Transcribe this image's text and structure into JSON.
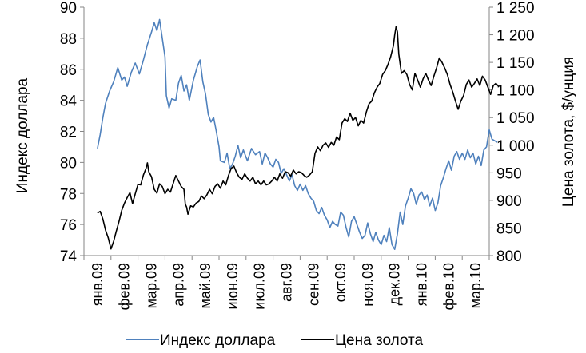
{
  "chart_data": {
    "type": "line",
    "y_left": {
      "label": "Индекс доллара",
      "ylim": [
        74,
        90
      ],
      "ticks": [
        74,
        76,
        78,
        80,
        82,
        84,
        86,
        88,
        90
      ]
    },
    "y_right": {
      "label": "Цена золота, $/унция",
      "ylim": [
        800,
        1250
      ],
      "ticks": [
        800,
        850,
        900,
        950,
        1000,
        1050,
        1100,
        1150,
        1200,
        1250
      ],
      "tick_labels": [
        "800",
        "850",
        "900",
        "950",
        "1 000",
        "1 050",
        "1 100",
        "1 150",
        "1 200",
        "1 250"
      ]
    },
    "x_axis": {
      "categories": [
        "янв.09",
        "фев.09",
        "мар.09",
        "апр.09",
        "май.09",
        "июн.09",
        "июл.09",
        "авг.09",
        "сен.09",
        "окт.09",
        "ноя.09",
        "дек.09",
        "янв.10",
        "фев.10",
        "мар.10"
      ]
    },
    "legend_position": "bottom",
    "grid": false,
    "series": [
      {
        "name": "Индекс доллара",
        "axis": "left",
        "color": "#4f81bd",
        "points": [
          [
            0.0,
            80.9
          ],
          [
            0.1,
            81.8
          ],
          [
            0.2,
            82.9
          ],
          [
            0.3,
            83.8
          ],
          [
            0.45,
            84.6
          ],
          [
            0.6,
            85.2
          ],
          [
            0.75,
            86.1
          ],
          [
            0.9,
            85.3
          ],
          [
            1.0,
            85.5
          ],
          [
            1.1,
            84.9
          ],
          [
            1.25,
            85.8
          ],
          [
            1.4,
            86.4
          ],
          [
            1.55,
            85.7
          ],
          [
            1.7,
            86.6
          ],
          [
            1.85,
            87.6
          ],
          [
            2.0,
            88.4
          ],
          [
            2.1,
            89.0
          ],
          [
            2.2,
            88.5
          ],
          [
            2.3,
            89.2
          ],
          [
            2.4,
            88.0
          ],
          [
            2.5,
            86.8
          ],
          [
            2.55,
            84.3
          ],
          [
            2.65,
            83.5
          ],
          [
            2.75,
            84.1
          ],
          [
            2.9,
            84.0
          ],
          [
            3.0,
            85.1
          ],
          [
            3.1,
            85.6
          ],
          [
            3.2,
            84.6
          ],
          [
            3.3,
            85.0
          ],
          [
            3.4,
            84.0
          ],
          [
            3.55,
            85.3
          ],
          [
            3.7,
            86.2
          ],
          [
            3.8,
            86.6
          ],
          [
            3.9,
            85.2
          ],
          [
            4.0,
            84.4
          ],
          [
            4.1,
            83.1
          ],
          [
            4.2,
            82.6
          ],
          [
            4.3,
            82.9
          ],
          [
            4.4,
            82.0
          ],
          [
            4.5,
            81.0
          ],
          [
            4.55,
            80.1
          ],
          [
            4.7,
            80.0
          ],
          [
            4.8,
            80.6
          ],
          [
            4.9,
            79.6
          ],
          [
            5.0,
            79.9
          ],
          [
            5.1,
            80.4
          ],
          [
            5.2,
            81.1
          ],
          [
            5.3,
            80.3
          ],
          [
            5.4,
            80.8
          ],
          [
            5.55,
            80.1
          ],
          [
            5.7,
            80.9
          ],
          [
            5.85,
            80.5
          ],
          [
            6.0,
            80.7
          ],
          [
            6.1,
            79.9
          ],
          [
            6.2,
            80.6
          ],
          [
            6.3,
            80.3
          ],
          [
            6.4,
            79.9
          ],
          [
            6.5,
            79.7
          ],
          [
            6.6,
            80.2
          ],
          [
            6.7,
            80.0
          ],
          [
            6.8,
            79.3
          ],
          [
            6.9,
            79.6
          ],
          [
            7.0,
            79.2
          ],
          [
            7.1,
            78.8
          ],
          [
            7.2,
            79.2
          ],
          [
            7.3,
            78.5
          ],
          [
            7.4,
            78.2
          ],
          [
            7.5,
            78.6
          ],
          [
            7.6,
            78.2
          ],
          [
            7.7,
            78.5
          ],
          [
            7.8,
            78.0
          ],
          [
            7.9,
            77.7
          ],
          [
            8.0,
            77.5
          ],
          [
            8.1,
            76.9
          ],
          [
            8.2,
            76.7
          ],
          [
            8.3,
            77.1
          ],
          [
            8.4,
            76.6
          ],
          [
            8.5,
            76.3
          ],
          [
            8.6,
            75.8
          ],
          [
            8.7,
            76.2
          ],
          [
            8.8,
            76.0
          ],
          [
            8.9,
            75.9
          ],
          [
            9.0,
            76.8
          ],
          [
            9.1,
            76.6
          ],
          [
            9.2,
            75.8
          ],
          [
            9.3,
            75.2
          ],
          [
            9.4,
            76.2
          ],
          [
            9.5,
            76.5
          ],
          [
            9.6,
            76.0
          ],
          [
            9.7,
            75.5
          ],
          [
            9.8,
            75.1
          ],
          [
            9.9,
            75.3
          ],
          [
            10.0,
            76.1
          ],
          [
            10.1,
            75.4
          ],
          [
            10.2,
            74.9
          ],
          [
            10.3,
            75.5
          ],
          [
            10.4,
            75.0
          ],
          [
            10.5,
            74.7
          ],
          [
            10.6,
            75.3
          ],
          [
            10.7,
            74.9
          ],
          [
            10.8,
            75.8
          ],
          [
            10.9,
            74.7
          ],
          [
            11.0,
            74.4
          ],
          [
            11.1,
            75.4
          ],
          [
            11.2,
            76.8
          ],
          [
            11.3,
            76.0
          ],
          [
            11.4,
            77.2
          ],
          [
            11.5,
            77.7
          ],
          [
            11.6,
            78.3
          ],
          [
            11.7,
            78.0
          ],
          [
            11.8,
            77.3
          ],
          [
            11.9,
            77.9
          ],
          [
            12.0,
            78.1
          ],
          [
            12.1,
            77.6
          ],
          [
            12.2,
            77.9
          ],
          [
            12.3,
            77.2
          ],
          [
            12.4,
            77.7
          ],
          [
            12.5,
            76.9
          ],
          [
            12.6,
            77.4
          ],
          [
            12.7,
            78.5
          ],
          [
            12.8,
            79.0
          ],
          [
            12.9,
            79.6
          ],
          [
            13.0,
            80.1
          ],
          [
            13.1,
            79.5
          ],
          [
            13.2,
            80.4
          ],
          [
            13.3,
            80.7
          ],
          [
            13.4,
            80.2
          ],
          [
            13.5,
            80.6
          ],
          [
            13.6,
            80.2
          ],
          [
            13.7,
            80.8
          ],
          [
            13.8,
            80.3
          ],
          [
            13.9,
            80.6
          ],
          [
            14.0,
            79.9
          ],
          [
            14.1,
            80.4
          ],
          [
            14.2,
            79.8
          ],
          [
            14.3,
            80.8
          ],
          [
            14.4,
            81.0
          ],
          [
            14.5,
            82.1
          ],
          [
            14.6,
            81.5
          ],
          [
            14.7,
            81.4
          ],
          [
            14.8,
            81.3
          ]
        ]
      },
      {
        "name": "Цена золота",
        "axis": "right",
        "color": "#000000",
        "points": [
          [
            0.0,
            877
          ],
          [
            0.1,
            880
          ],
          [
            0.2,
            866
          ],
          [
            0.3,
            846
          ],
          [
            0.4,
            832
          ],
          [
            0.5,
            812
          ],
          [
            0.6,
            826
          ],
          [
            0.7,
            845
          ],
          [
            0.8,
            862
          ],
          [
            0.9,
            882
          ],
          [
            1.0,
            895
          ],
          [
            1.1,
            905
          ],
          [
            1.2,
            914
          ],
          [
            1.3,
            894
          ],
          [
            1.4,
            912
          ],
          [
            1.5,
            929
          ],
          [
            1.6,
            928
          ],
          [
            1.7,
            946
          ],
          [
            1.8,
            958
          ],
          [
            1.85,
            968
          ],
          [
            1.9,
            952
          ],
          [
            2.0,
            943
          ],
          [
            2.1,
            920
          ],
          [
            2.2,
            913
          ],
          [
            2.3,
            930
          ],
          [
            2.4,
            925
          ],
          [
            2.5,
            912
          ],
          [
            2.6,
            920
          ],
          [
            2.7,
            915
          ],
          [
            2.8,
            930
          ],
          [
            2.9,
            945
          ],
          [
            3.0,
            935
          ],
          [
            3.1,
            925
          ],
          [
            3.2,
            920
          ],
          [
            3.25,
            893
          ],
          [
            3.3,
            888
          ],
          [
            3.35,
            875
          ],
          [
            3.45,
            890
          ],
          [
            3.55,
            888
          ],
          [
            3.65,
            895
          ],
          [
            3.75,
            898
          ],
          [
            3.85,
            908
          ],
          [
            3.95,
            903
          ],
          [
            4.05,
            910
          ],
          [
            4.15,
            920
          ],
          [
            4.25,
            912
          ],
          [
            4.35,
            925
          ],
          [
            4.45,
            930
          ],
          [
            4.55,
            922
          ],
          [
            4.65,
            935
          ],
          [
            4.75,
            928
          ],
          [
            4.85,
            945
          ],
          [
            4.95,
            958
          ],
          [
            5.05,
            962
          ],
          [
            5.15,
            950
          ],
          [
            5.25,
            942
          ],
          [
            5.35,
            938
          ],
          [
            5.45,
            948
          ],
          [
            5.55,
            940
          ],
          [
            5.65,
            935
          ],
          [
            5.75,
            942
          ],
          [
            5.85,
            930
          ],
          [
            5.95,
            935
          ],
          [
            6.05,
            928
          ],
          [
            6.15,
            935
          ],
          [
            6.25,
            928
          ],
          [
            6.35,
            930
          ],
          [
            6.45,
            935
          ],
          [
            6.55,
            942
          ],
          [
            6.65,
            935
          ],
          [
            6.75,
            948
          ],
          [
            6.85,
            940
          ],
          [
            6.95,
            952
          ],
          [
            7.05,
            950
          ],
          [
            7.15,
            944
          ],
          [
            7.25,
            955
          ],
          [
            7.35,
            948
          ],
          [
            7.45,
            952
          ],
          [
            7.55,
            950
          ],
          [
            7.65,
            945
          ],
          [
            7.75,
            942
          ],
          [
            7.85,
            946
          ],
          [
            7.95,
            952
          ],
          [
            8.05,
            985
          ],
          [
            8.15,
            997
          ],
          [
            8.25,
            990
          ],
          [
            8.35,
            1000
          ],
          [
            8.45,
            1004
          ],
          [
            8.55,
            996
          ],
          [
            8.65,
            1005
          ],
          [
            8.75,
            1000
          ],
          [
            8.85,
            1015
          ],
          [
            8.95,
            1010
          ],
          [
            9.05,
            1040
          ],
          [
            9.15,
            1048
          ],
          [
            9.25,
            1043
          ],
          [
            9.35,
            1058
          ],
          [
            9.45,
            1045
          ],
          [
            9.55,
            1050
          ],
          [
            9.65,
            1035
          ],
          [
            9.75,
            1045
          ],
          [
            9.85,
            1040
          ],
          [
            9.95,
            1060
          ],
          [
            10.05,
            1075
          ],
          [
            10.15,
            1080
          ],
          [
            10.25,
            1095
          ],
          [
            10.35,
            1105
          ],
          [
            10.45,
            1112
          ],
          [
            10.55,
            1128
          ],
          [
            10.65,
            1135
          ],
          [
            10.75,
            1146
          ],
          [
            10.85,
            1160
          ],
          [
            10.95,
            1180
          ],
          [
            11.0,
            1200
          ],
          [
            11.05,
            1215
          ],
          [
            11.1,
            1205
          ],
          [
            11.15,
            1165
          ],
          [
            11.25,
            1130
          ],
          [
            11.35,
            1135
          ],
          [
            11.45,
            1128
          ],
          [
            11.55,
            1110
          ],
          [
            11.65,
            1100
          ],
          [
            11.75,
            1130
          ],
          [
            11.85,
            1118
          ],
          [
            11.95,
            1105
          ],
          [
            12.05,
            1120
          ],
          [
            12.15,
            1130
          ],
          [
            12.25,
            1118
          ],
          [
            12.35,
            1108
          ],
          [
            12.45,
            1125
          ],
          [
            12.55,
            1140
          ],
          [
            12.65,
            1158
          ],
          [
            12.75,
            1150
          ],
          [
            12.85,
            1140
          ],
          [
            12.95,
            1128
          ],
          [
            13.05,
            1110
          ],
          [
            13.15,
            1096
          ],
          [
            13.25,
            1080
          ],
          [
            13.35,
            1065
          ],
          [
            13.45,
            1080
          ],
          [
            13.55,
            1090
          ],
          [
            13.65,
            1110
          ],
          [
            13.75,
            1118
          ],
          [
            13.85,
            1105
          ],
          [
            13.95,
            1112
          ],
          [
            14.05,
            1120
          ],
          [
            14.15,
            1108
          ],
          [
            14.25,
            1125
          ],
          [
            14.35,
            1118
          ],
          [
            14.45,
            1105
          ],
          [
            14.55,
            1092
          ],
          [
            14.65,
            1108
          ],
          [
            14.75,
            1112
          ],
          [
            14.85,
            1106
          ]
        ]
      }
    ]
  }
}
